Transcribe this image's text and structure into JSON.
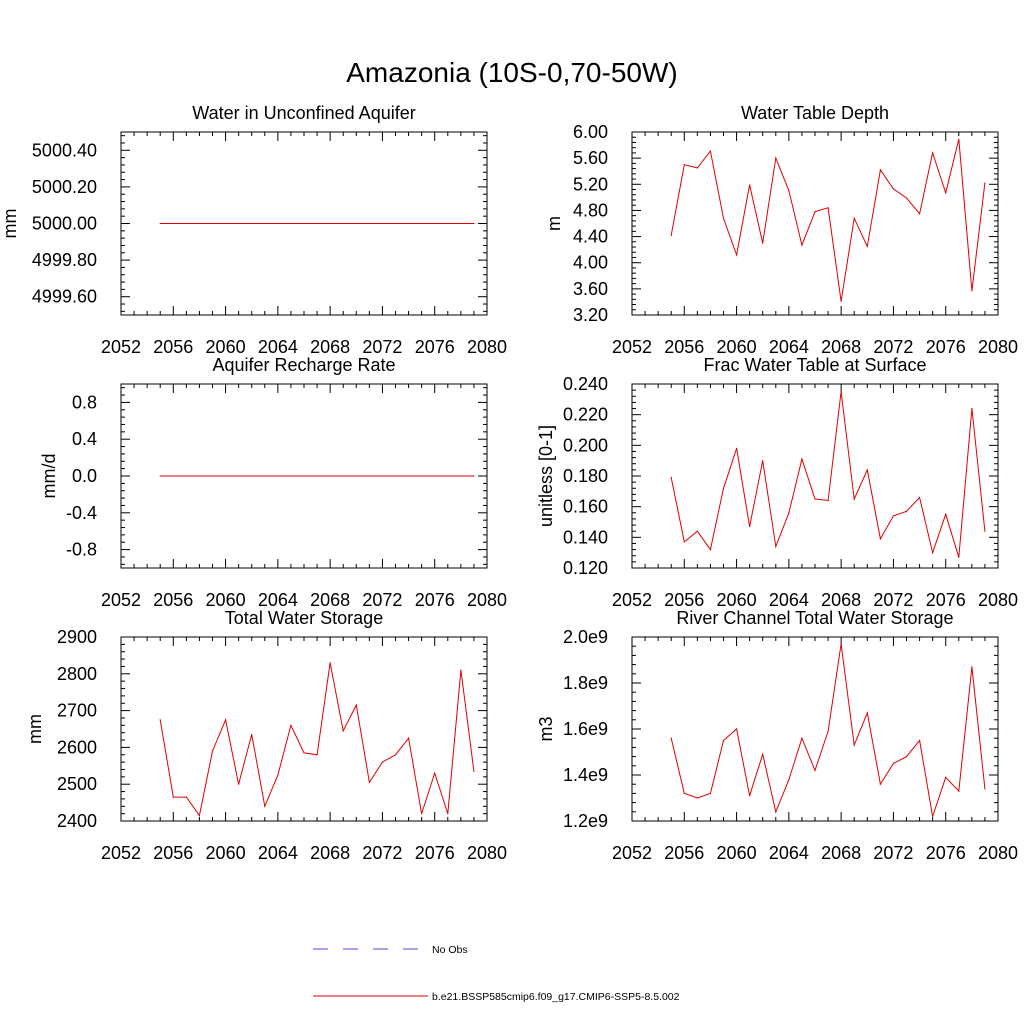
{
  "figure": {
    "title": "Amazonia (10S-0,70-50W)",
    "legend": {
      "entries": [
        {
          "label": "No Obs",
          "style": "dashed",
          "color": "#4a4ad0"
        },
        {
          "label": "b.e21.BSSP585cmip6.f09_g17.CMIP6-SSP5-8.5.002",
          "style": "solid",
          "color": "#e00000"
        }
      ]
    }
  },
  "chart_data": [
    {
      "type": "line",
      "title": "Water in Unconfined Aquifer",
      "xlabel": "",
      "ylabel": "mm",
      "xlim": [
        2052,
        2080
      ],
      "ylim": [
        4999.5,
        5000.5
      ],
      "xticks": [
        2052,
        2056,
        2060,
        2064,
        2068,
        2072,
        2076,
        2080
      ],
      "xticklabels": [
        "2052",
        "2056",
        "2060",
        "2064",
        "2068",
        "2072",
        "2076",
        "2080"
      ],
      "yticks": [
        4999.6,
        4999.8,
        5000.0,
        5000.2,
        5000.4
      ],
      "yticklabels": [
        "4999.60",
        "4999.80",
        "5000.00",
        "5000.20",
        "5000.40"
      ],
      "ylabel_offset": 105,
      "x": [
        2055,
        2056,
        2057,
        2058,
        2059,
        2060,
        2061,
        2062,
        2063,
        2064,
        2065,
        2066,
        2067,
        2068,
        2069,
        2070,
        2071,
        2072,
        2073,
        2074,
        2075,
        2076,
        2077,
        2078,
        2079
      ],
      "series": [
        {
          "name": "b.e21.BSSP585cmip6.f09_g17.CMIP6-SSP5-8.5.002",
          "color": "#e00000",
          "values": [
            5000,
            5000,
            5000,
            5000,
            5000,
            5000,
            5000,
            5000,
            5000,
            5000,
            5000,
            5000,
            5000,
            5000,
            5000,
            5000,
            5000,
            5000,
            5000,
            5000,
            5000,
            5000,
            5000,
            5000,
            5000
          ]
        }
      ]
    },
    {
      "type": "line",
      "title": "Water Table Depth",
      "xlabel": "",
      "ylabel": "m",
      "xlim": [
        2052,
        2080
      ],
      "ylim": [
        3.2,
        6.0
      ],
      "xticks": [
        2052,
        2056,
        2060,
        2064,
        2068,
        2072,
        2076,
        2080
      ],
      "xticklabels": [
        "2052",
        "2056",
        "2060",
        "2064",
        "2068",
        "2072",
        "2076",
        "2080"
      ],
      "yticks": [
        3.2,
        3.6,
        4.0,
        4.4,
        4.8,
        5.2,
        5.6,
        6.0
      ],
      "yticklabels": [
        "3.20",
        "3.60",
        "4.00",
        "4.40",
        "4.80",
        "5.20",
        "5.60",
        "6.00"
      ],
      "ylabel_offset": 72,
      "x": [
        2055,
        2056,
        2057,
        2058,
        2059,
        2060,
        2061,
        2062,
        2063,
        2064,
        2065,
        2066,
        2067,
        2068,
        2069,
        2070,
        2071,
        2072,
        2073,
        2074,
        2075,
        2076,
        2077,
        2078,
        2079
      ],
      "series": [
        {
          "name": "b.e21.BSSP585cmip6.f09_g17.CMIP6-SSP5-8.5.002",
          "color": "#e00000",
          "values": [
            4.42,
            5.5,
            5.45,
            5.71,
            4.68,
            4.12,
            5.19,
            4.3,
            5.6,
            5.1,
            4.27,
            4.78,
            4.84,
            3.41,
            4.68,
            4.25,
            5.42,
            5.13,
            4.99,
            4.75,
            5.68,
            5.07,
            5.89,
            3.57,
            5.22
          ]
        }
      ]
    },
    {
      "type": "line",
      "title": "Aquifer Recharge Rate",
      "xlabel": "",
      "ylabel": "mm/d",
      "xlim": [
        2052,
        2080
      ],
      "ylim": [
        -1.0,
        1.0
      ],
      "xticks": [
        2052,
        2056,
        2060,
        2064,
        2068,
        2072,
        2076,
        2080
      ],
      "xticklabels": [
        "2052",
        "2056",
        "2060",
        "2064",
        "2068",
        "2072",
        "2076",
        "2080"
      ],
      "yticks": [
        -0.8,
        -0.4,
        0.0,
        0.4,
        0.8
      ],
      "yticklabels": [
        "-0.8",
        "-0.4",
        "0.0",
        "0.4",
        "0.8"
      ],
      "ylabel_offset": 66,
      "x": [
        2055,
        2056,
        2057,
        2058,
        2059,
        2060,
        2061,
        2062,
        2063,
        2064,
        2065,
        2066,
        2067,
        2068,
        2069,
        2070,
        2071,
        2072,
        2073,
        2074,
        2075,
        2076,
        2077,
        2078,
        2079
      ],
      "series": [
        {
          "name": "b.e21.BSSP585cmip6.f09_g17.CMIP6-SSP5-8.5.002",
          "color": "#e00000",
          "values": [
            0,
            0,
            0,
            0,
            0,
            0,
            0,
            0,
            0,
            0,
            0,
            0,
            0,
            0,
            0,
            0,
            0,
            0,
            0,
            0,
            0,
            0,
            0,
            0,
            0
          ]
        }
      ]
    },
    {
      "type": "line",
      "title": "Frac Water Table at Surface",
      "xlabel": "",
      "ylabel": "unitless [0-1]",
      "xlim": [
        2052,
        2080
      ],
      "ylim": [
        0.12,
        0.24
      ],
      "xticks": [
        2052,
        2056,
        2060,
        2064,
        2068,
        2072,
        2076,
        2080
      ],
      "xticklabels": [
        "2052",
        "2056",
        "2060",
        "2064",
        "2068",
        "2072",
        "2076",
        "2080"
      ],
      "yticks": [
        0.12,
        0.14,
        0.16,
        0.18,
        0.2,
        0.22,
        0.24
      ],
      "yticklabels": [
        "0.120",
        "0.140",
        "0.160",
        "0.180",
        "0.200",
        "0.220",
        "0.240"
      ],
      "ylabel_offset": 80,
      "x": [
        2055,
        2056,
        2057,
        2058,
        2059,
        2060,
        2061,
        2062,
        2063,
        2064,
        2065,
        2066,
        2067,
        2068,
        2069,
        2070,
        2071,
        2072,
        2073,
        2074,
        2075,
        2076,
        2077,
        2078,
        2079
      ],
      "series": [
        {
          "name": "b.e21.BSSP585cmip6.f09_g17.CMIP6-SSP5-8.5.002",
          "color": "#e00000",
          "values": [
            0.179,
            0.137,
            0.144,
            0.132,
            0.172,
            0.198,
            0.147,
            0.19,
            0.134,
            0.156,
            0.191,
            0.165,
            0.164,
            0.235,
            0.165,
            0.184,
            0.139,
            0.154,
            0.157,
            0.166,
            0.13,
            0.155,
            0.127,
            0.224,
            0.144
          ]
        }
      ]
    },
    {
      "type": "line",
      "title": "Total Water Storage",
      "xlabel": "",
      "ylabel": "mm",
      "xlim": [
        2052,
        2080
      ],
      "ylim": [
        2400,
        2900
      ],
      "xticks": [
        2052,
        2056,
        2060,
        2064,
        2068,
        2072,
        2076,
        2080
      ],
      "xticklabels": [
        "2052",
        "2056",
        "2060",
        "2064",
        "2068",
        "2072",
        "2076",
        "2080"
      ],
      "yticks": [
        2400,
        2500,
        2600,
        2700,
        2800,
        2900
      ],
      "yticklabels": [
        "2400",
        "2500",
        "2600",
        "2700",
        "2800",
        "2900"
      ],
      "ylabel_offset": 80,
      "x": [
        2055,
        2056,
        2057,
        2058,
        2059,
        2060,
        2061,
        2062,
        2063,
        2064,
        2065,
        2066,
        2067,
        2068,
        2069,
        2070,
        2071,
        2072,
        2073,
        2074,
        2075,
        2076,
        2077,
        2078,
        2079
      ],
      "series": [
        {
          "name": "b.e21.BSSP585cmip6.f09_g17.CMIP6-SSP5-8.5.002",
          "color": "#e00000",
          "values": [
            2675,
            2465,
            2465,
            2415,
            2590,
            2675,
            2500,
            2635,
            2440,
            2525,
            2660,
            2585,
            2580,
            2830,
            2645,
            2715,
            2505,
            2560,
            2580,
            2625,
            2420,
            2530,
            2420,
            2810,
            2535
          ]
        }
      ]
    },
    {
      "type": "line",
      "title": "River Channel Total Water Storage",
      "xlabel": "",
      "ylabel": "m3",
      "xlim": [
        2052,
        2080
      ],
      "ylim": [
        1200000000.0,
        2000000000.0
      ],
      "xticks": [
        2052,
        2056,
        2060,
        2064,
        2068,
        2072,
        2076,
        2080
      ],
      "xticklabels": [
        "2052",
        "2056",
        "2060",
        "2064",
        "2068",
        "2072",
        "2076",
        "2080"
      ],
      "yticks": [
        1200000000.0,
        1400000000.0,
        1600000000.0,
        1800000000.0,
        2000000000.0
      ],
      "yticklabels": [
        "1.2e9",
        "1.4e9",
        "1.6e9",
        "1.8e9",
        "2.0e9"
      ],
      "ylabel_offset": 80,
      "x": [
        2055,
        2056,
        2057,
        2058,
        2059,
        2060,
        2061,
        2062,
        2063,
        2064,
        2065,
        2066,
        2067,
        2068,
        2069,
        2070,
        2071,
        2072,
        2073,
        2074,
        2075,
        2076,
        2077,
        2078,
        2079
      ],
      "series": [
        {
          "name": "b.e21.BSSP585cmip6.f09_g17.CMIP6-SSP5-8.5.002",
          "color": "#e00000",
          "values": [
            1560000000.0,
            1320000000.0,
            1300000000.0,
            1320000000.0,
            1550000000.0,
            1600000000.0,
            1310000000.0,
            1490000000.0,
            1240000000.0,
            1380000000.0,
            1560000000.0,
            1420000000.0,
            1590000000.0,
            1970000000.0,
            1530000000.0,
            1670000000.0,
            1360000000.0,
            1450000000.0,
            1480000000.0,
            1550000000.0,
            1220000000.0,
            1390000000.0,
            1330000000.0,
            1870000000.0,
            1340000000.0
          ]
        }
      ]
    }
  ]
}
